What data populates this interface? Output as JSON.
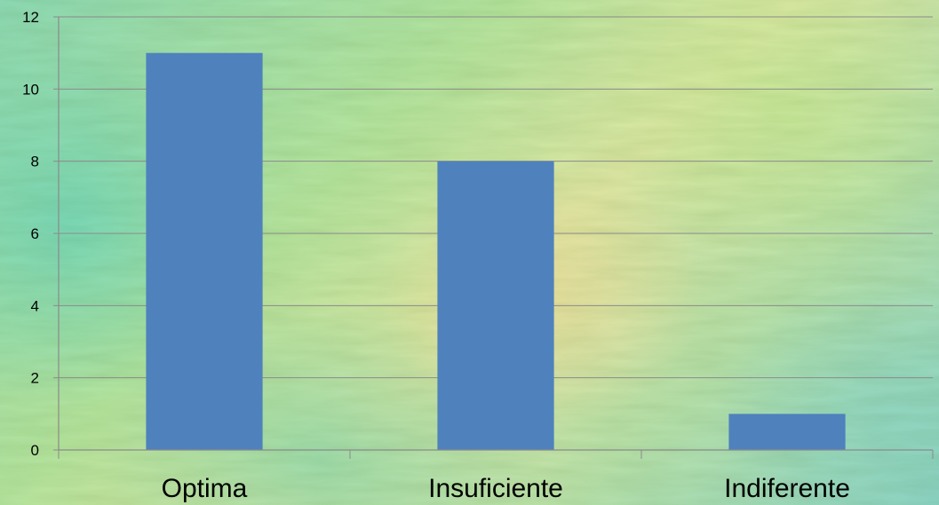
{
  "chart_data": {
    "type": "bar",
    "categories": [
      "Optima",
      "Insuficiente",
      "Indiferente"
    ],
    "values": [
      11,
      8,
      1
    ],
    "ylim": [
      0,
      12
    ],
    "yticks": [
      "0",
      "2",
      "4",
      "6",
      "8",
      "10",
      "12"
    ],
    "grid": true,
    "legend": "none",
    "title": "",
    "xlabel": "",
    "ylabel": "",
    "colors": {
      "bar": "#4f81bd",
      "gridline": "#8a8a8a",
      "axis": "#8a8a8a",
      "text": "#000000"
    }
  }
}
